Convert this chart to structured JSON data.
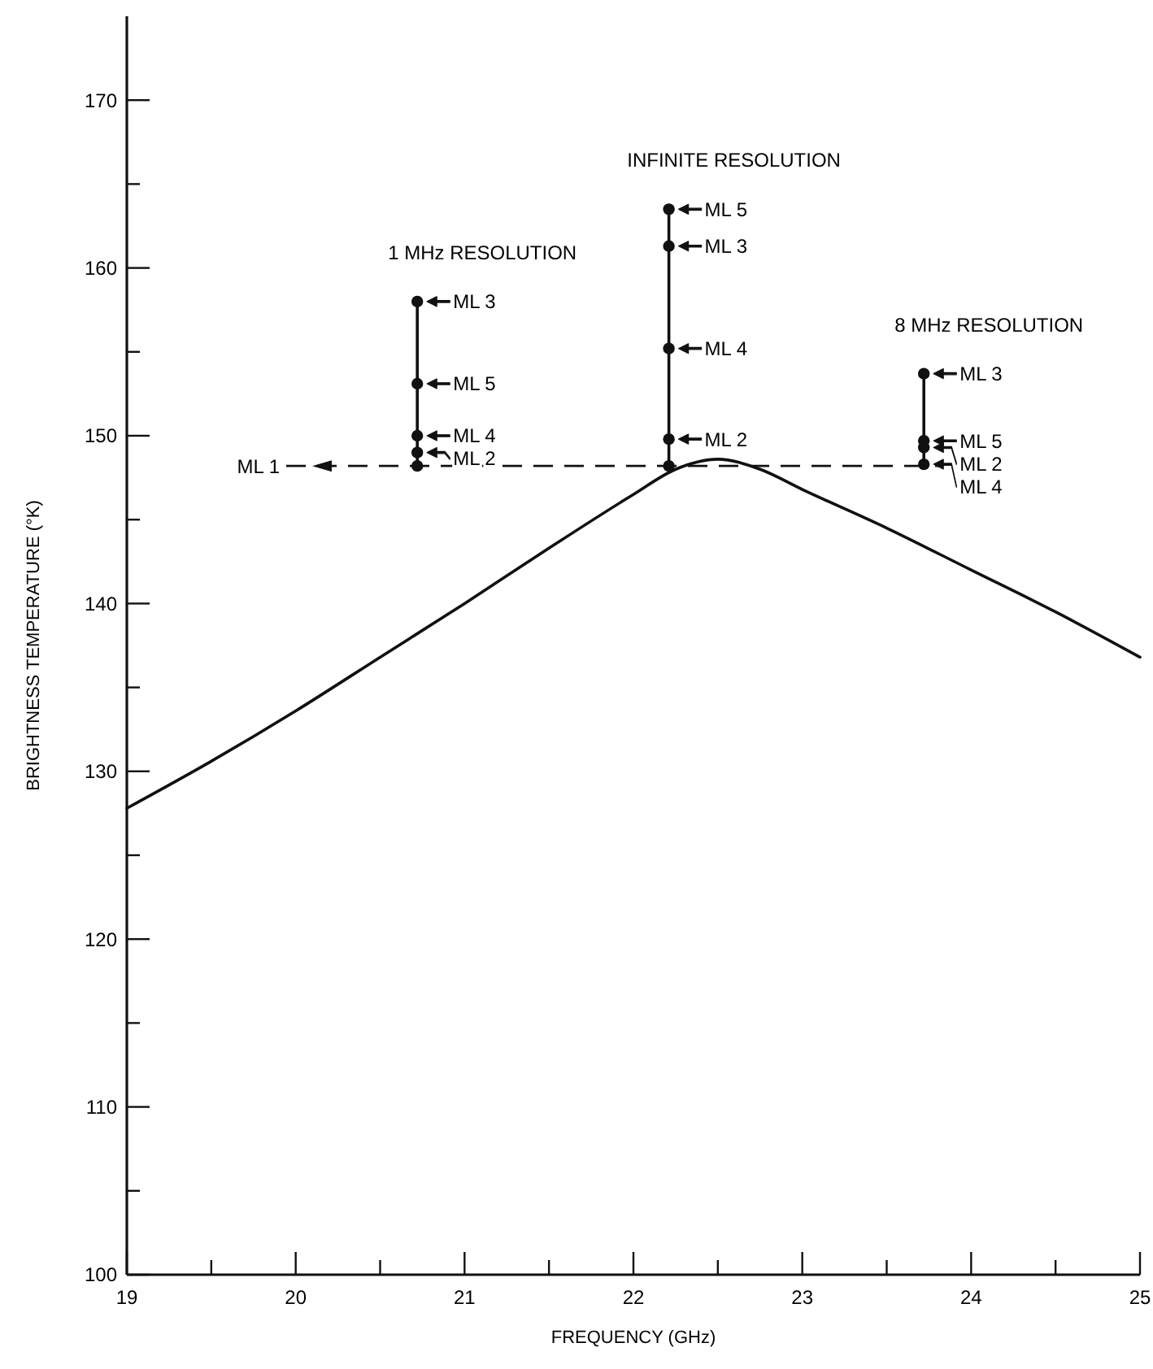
{
  "chart_data": {
    "type": "line",
    "xlabel": "FREQUENCY (GHz)",
    "ylabel": "BRIGHTNESS TEMPERATURE (°K)",
    "xlim": [
      19,
      25
    ],
    "ylim": [
      100,
      175
    ],
    "xticks": [
      19,
      {
        "value": 19.5,
        "label": null
      },
      20,
      {
        "value": 20.5,
        "label": null
      },
      21,
      {
        "value": 21.5,
        "label": null
      },
      22,
      {
        "value": 22.5,
        "label": null
      },
      23,
      {
        "value": 23.5,
        "label": null
      },
      24,
      {
        "value": 24.5,
        "label": null
      },
      25
    ],
    "yticks": [
      100,
      {
        "value": 105,
        "label": null
      },
      110,
      {
        "value": 115,
        "label": null
      },
      120,
      {
        "value": 125,
        "label": null
      },
      130,
      {
        "value": 135,
        "label": null
      },
      140,
      {
        "value": 145,
        "label": null
      },
      150,
      {
        "value": 155,
        "label": null
      },
      160,
      {
        "value": 165,
        "label": null
      },
      170
    ],
    "grid": false,
    "legend": false,
    "series": [
      {
        "color": "#111111",
        "marker": "none",
        "x": [
          19,
          19.5,
          20,
          20.5,
          21,
          21.5,
          22,
          22.25,
          22.5,
          22.75,
          23,
          23.5,
          24,
          24.5,
          25
        ],
        "values": [
          127.8,
          130.6,
          133.6,
          136.8,
          140.0,
          143.3,
          146.5,
          148.0,
          148.6,
          148.0,
          146.8,
          144.5,
          142.0,
          139.5,
          136.8
        ]
      },
      {
        "name": "1 MHz RESOLUTION",
        "color": "#111111",
        "marker": "circle",
        "x": [
          20.72,
          20.72,
          20.72,
          20.72,
          20.72
        ],
        "values": [
          148.2,
          149.0,
          150.0,
          153.1,
          158.0
        ],
        "value_labels": [
          null,
          "ML 2",
          "ML 4",
          "ML 5",
          "ML 3"
        ]
      },
      {
        "name": "INFINITE RESOLUTION",
        "color": "#111111",
        "marker": "circle",
        "x": [
          22.21,
          22.21,
          22.21,
          22.21,
          22.21
        ],
        "values": [
          148.2,
          149.8,
          155.2,
          161.3,
          163.5
        ],
        "value_labels": [
          null,
          "ML 2",
          "ML 4",
          "ML 3",
          "ML 5"
        ]
      },
      {
        "name": "8 MHz RESOLUTION",
        "color": "#111111",
        "marker": "circle",
        "x": [
          23.72,
          23.72,
          23.72,
          23.72
        ],
        "values": [
          148.3,
          149.3,
          149.7,
          153.7
        ],
        "value_labels": [
          "ML 4",
          "ML 2",
          "ML 5",
          "ML 3"
        ]
      }
    ],
    "ref_lines": [
      {
        "axis": "y",
        "value": 148.2,
        "label": "ML 1",
        "line_style": "dashed",
        "color": "#111111"
      }
    ]
  }
}
